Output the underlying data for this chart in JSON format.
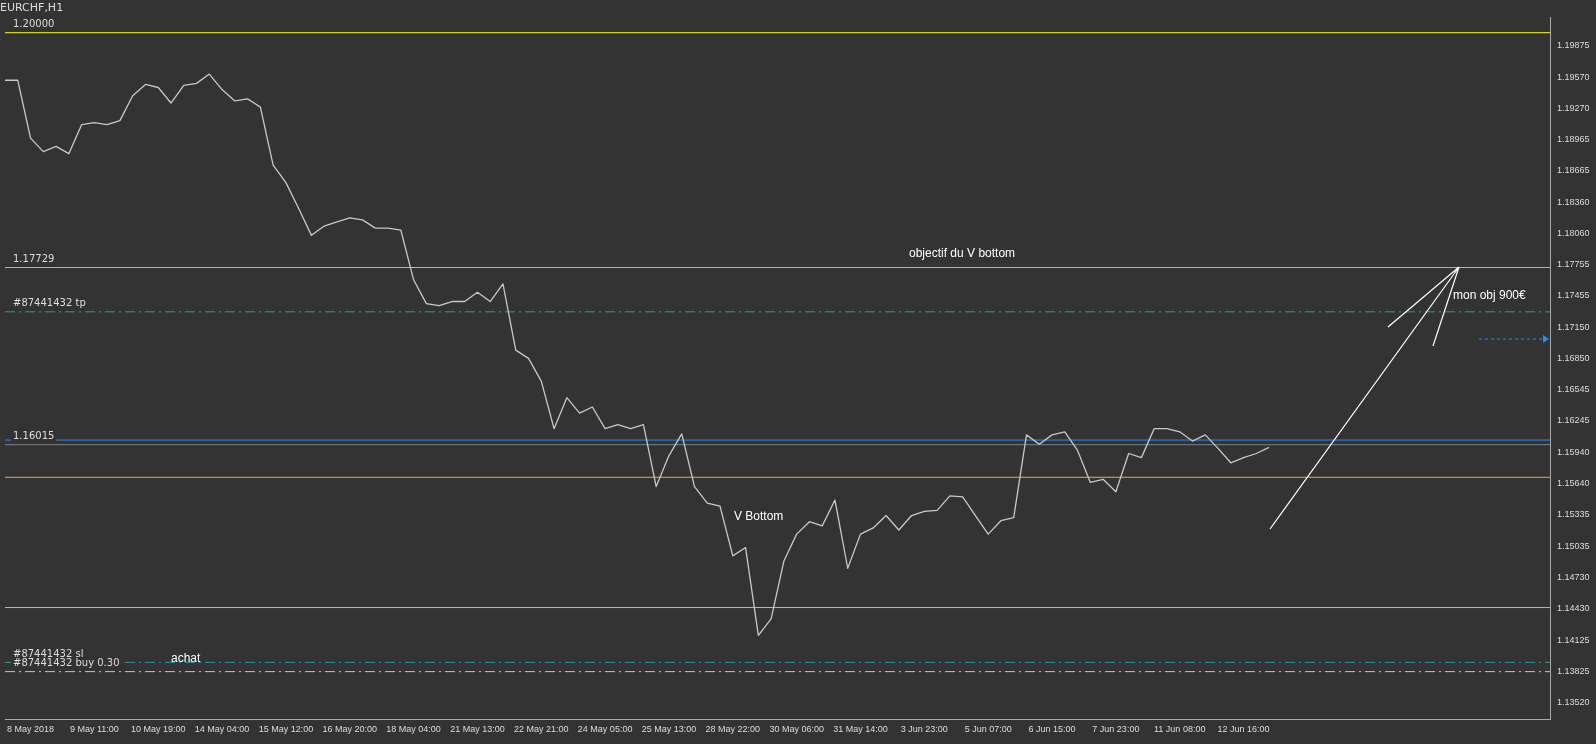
{
  "chart_data": {
    "type": "line",
    "title": "EURCHF,H1",
    "categories": [
      null,
      null,
      "8 May 2018",
      null,
      null,
      null,
      null,
      "9 May 11:00",
      null,
      null,
      null,
      null,
      "10 May 19:00",
      null,
      null,
      null,
      null,
      "14 May 04:00",
      null,
      null,
      null,
      null,
      "15 May 12:00",
      null,
      null,
      null,
      null,
      "16 May 20:00",
      null,
      null,
      null,
      null,
      "18 May 04:00",
      null,
      null,
      null,
      null,
      "21 May 13:00",
      null,
      null,
      null,
      null,
      "22 May 21:00",
      null,
      null,
      null,
      null,
      "24 May 05:00",
      null,
      null,
      null,
      null,
      "25 May 13:00",
      null,
      null,
      null,
      null,
      "28 May 22:00",
      null,
      null,
      null,
      null,
      "30 May 06:00",
      null,
      null,
      null,
      null,
      "31 May 14:00",
      null,
      null,
      null,
      null,
      "3 Jun 23:00",
      null,
      null,
      null,
      null,
      "5 Jun 07:00",
      null,
      null,
      null,
      null,
      "6 Jun 15:00",
      null,
      null,
      null,
      null,
      "7 Jun 23:00",
      null,
      null,
      null,
      null,
      "11 Jun 08:00",
      null,
      null,
      null,
      null,
      "12 Jun 16:00",
      null,
      null,
      null,
      null,
      null,
      null,
      null,
      null,
      null,
      null,
      null,
      null,
      null,
      null,
      null,
      null,
      null,
      null,
      null,
      null,
      null,
      null,
      null,
      null
    ],
    "series": [
      {
        "color": "#c8c8c8",
        "values": [
          1.1954,
          1.1954,
          1.1898,
          1.1885,
          1.189,
          1.1883,
          1.1911,
          1.1913,
          1.1911,
          1.1915,
          1.1939,
          1.195,
          1.1947,
          1.1932,
          1.1949,
          1.1951,
          1.196,
          1.1945,
          1.1934,
          1.1936,
          1.1928,
          1.1872,
          1.1855,
          1.183,
          1.1804,
          1.1813,
          1.1817,
          1.1821,
          1.1819,
          1.1811,
          1.1811,
          1.1809,
          1.1761,
          1.1738,
          1.1736,
          1.174,
          1.174,
          1.1749,
          1.174,
          1.1757,
          1.1693,
          1.1685,
          1.1663,
          1.1617,
          1.1647,
          1.1632,
          1.1638,
          1.1617,
          1.1621,
          1.1617,
          1.1621,
          1.1561,
          1.1591,
          1.1612,
          1.1561,
          1.1545,
          1.1542,
          1.1494,
          1.1502,
          1.1417,
          1.1433,
          1.1489,
          1.1515,
          1.1527,
          1.1523,
          1.1548,
          1.1482,
          1.1515,
          1.1521,
          1.1533,
          1.1519,
          1.1533,
          1.1537,
          1.1538,
          1.1552,
          1.1551,
          1.1533,
          1.1515,
          1.1528,
          1.1531,
          1.1611,
          1.1602,
          1.1611,
          1.1614,
          1.1596,
          1.1565,
          1.1568,
          1.1556,
          1.1593,
          1.1589,
          1.1617,
          1.1617,
          1.1614,
          1.1605,
          1.1611,
          1.1598,
          1.1584,
          1.1589,
          1.1593,
          1.1599,
          null,
          null,
          null,
          null,
          null,
          null,
          null,
          null,
          null,
          null,
          null,
          null,
          null,
          null,
          null,
          null,
          null,
          null,
          null,
          null,
          null,
          null
        ]
      }
    ],
    "ylim": [
      1.1336,
      1.2015
    ],
    "yticks": [
      {
        "value": 1.1352,
        "label": "1.13520"
      },
      {
        "value": 1.13825,
        "label": "1.13825"
      },
      {
        "value": 1.14125,
        "label": "1.14125"
      },
      {
        "value": 1.1443,
        "label": "1.14430"
      },
      {
        "value": 1.1473,
        "label": "1.14730"
      },
      {
        "value": 1.15035,
        "label": "1.15035"
      },
      {
        "value": 1.15335,
        "label": "1.15335"
      },
      {
        "value": 1.1564,
        "label": "1.15640"
      },
      {
        "value": 1.1594,
        "label": "1.15940"
      },
      {
        "value": 1.16245,
        "label": "1.16245"
      },
      {
        "value": 1.16545,
        "label": "1.16545"
      },
      {
        "value": 1.1685,
        "label": "1.16850"
      },
      {
        "value": 1.1715,
        "label": "1.17150"
      },
      {
        "value": 1.17455,
        "label": "1.17455"
      },
      {
        "value": 1.17755,
        "label": "1.17755"
      },
      {
        "value": 1.1806,
        "label": "1.18060"
      },
      {
        "value": 1.1836,
        "label": "1.18360"
      },
      {
        "value": 1.18665,
        "label": "1.18665"
      },
      {
        "value": 1.18965,
        "label": "1.18965"
      },
      {
        "value": 1.1927,
        "label": "1.19270"
      },
      {
        "value": 1.1957,
        "label": "1.19570"
      },
      {
        "value": 1.19875,
        "label": "1.19875"
      }
    ],
    "ref_lines": [
      {
        "axis": "y",
        "value": 1.2,
        "label": "1.20000",
        "color": "#ffff00",
        "line_style": "solid"
      },
      {
        "axis": "y",
        "value": 1.1444,
        "color": "#7cfc00",
        "line_style": "solid"
      },
      {
        "axis": "y",
        "value": 1.173,
        "label": "#87441432 tp",
        "color": "#20a0a0",
        "line_style": "dashed"
      },
      {
        "axis": "y",
        "value": 1.1391,
        "label": "#87441432 sl",
        "color": "#20a0a0",
        "line_style": "dashed"
      },
      {
        "axis": "y",
        "value": 1.1382,
        "label": "#87441432 buy 0.30",
        "color": "#c8c8c8",
        "line_style": "dashed"
      },
      {
        "axis": "y",
        "value": 1.1606,
        "color": "#1e90ff",
        "line_style": "solid"
      },
      {
        "axis": "y",
        "value": 1.16015,
        "label": "1.16015",
        "color": "#808080",
        "line_style": "solid"
      },
      {
        "axis": "y",
        "value": 1.17729,
        "label": "1.17729",
        "color": "#f4a460",
        "line_style": "solid"
      },
      {
        "axis": "y",
        "value": 1.157,
        "color": "#f4a460",
        "line_style": "solid"
      }
    ],
    "annotations": [
      "V Bottom",
      "objectif du V bottom",
      "achat",
      "mon obj 900€"
    ],
    "marker": "none",
    "line_style": "solid",
    "legend": false
  }
}
